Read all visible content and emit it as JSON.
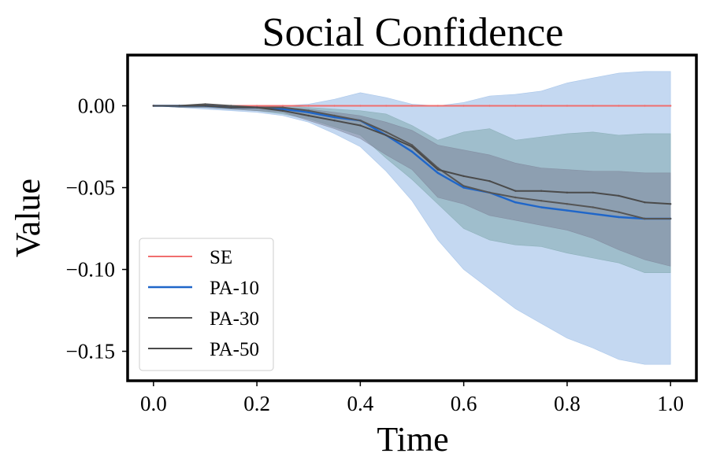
{
  "chart_data": {
    "type": "line",
    "title": "Social Confidence",
    "xlabel": "Time",
    "ylabel": "Value",
    "xlim": [
      -0.05,
      1.05
    ],
    "ylim": [
      -0.168,
      0.031
    ],
    "xticks": [
      0.0,
      0.2,
      0.4,
      0.6,
      0.8,
      1.0
    ],
    "xtick_labels": [
      "0.0",
      "0.2",
      "0.4",
      "0.6",
      "0.8",
      "1.0"
    ],
    "yticks": [
      0.0,
      -0.05,
      -0.1,
      -0.15
    ],
    "ytick_labels": [
      "0.00",
      "−0.05",
      "−0.10",
      "−0.15"
    ],
    "grid": false,
    "legend_position": "lower-left",
    "x": [
      0.0,
      0.05,
      0.1,
      0.15,
      0.2,
      0.25,
      0.3,
      0.35,
      0.4,
      0.45,
      0.5,
      0.55,
      0.6,
      0.65,
      0.7,
      0.75,
      0.8,
      0.85,
      0.9,
      0.95,
      1.0
    ],
    "series": [
      {
        "name": "SE",
        "color": "#f06e6e",
        "values": [
          0,
          0,
          0,
          0,
          0,
          0,
          0,
          0,
          0,
          0,
          0,
          0,
          0,
          0,
          0,
          0,
          0,
          0,
          0,
          0,
          0
        ]
      },
      {
        "name": "PA-10",
        "color": "#1f66c9",
        "values": [
          0,
          0,
          0,
          -0.001,
          -0.001,
          -0.002,
          -0.004,
          -0.007,
          -0.009,
          -0.018,
          -0.028,
          -0.041,
          -0.05,
          -0.053,
          -0.059,
          -0.062,
          -0.064,
          -0.066,
          -0.068,
          -0.069,
          -0.069
        ],
        "band_upper": [
          0,
          0,
          0,
          0,
          0,
          0,
          0.001,
          0.004,
          0.008,
          0.005,
          0.001,
          0,
          0.002,
          0.006,
          0.007,
          0.009,
          0.014,
          0.017,
          0.02,
          0.021,
          0.021
        ],
        "band_lower": [
          0,
          -0.001,
          -0.002,
          -0.003,
          -0.004,
          -0.006,
          -0.01,
          -0.017,
          -0.025,
          -0.04,
          -0.058,
          -0.082,
          -0.1,
          -0.112,
          -0.124,
          -0.133,
          -0.142,
          -0.148,
          -0.155,
          -0.158,
          -0.158
        ],
        "band_color": "#8ab2e3"
      },
      {
        "name": "PA-30",
        "color": "#555555",
        "values": [
          0,
          0,
          0.001,
          0,
          -0.001,
          -0.001,
          -0.003,
          -0.006,
          -0.009,
          -0.016,
          -0.024,
          -0.038,
          -0.049,
          -0.053,
          -0.056,
          -0.058,
          -0.06,
          -0.062,
          -0.065,
          -0.069,
          -0.069
        ],
        "band_upper": [
          0,
          0,
          0,
          0,
          0,
          0,
          -0.001,
          -0.002,
          -0.003,
          -0.005,
          -0.012,
          -0.021,
          -0.016,
          -0.014,
          -0.021,
          -0.019,
          -0.017,
          -0.016,
          -0.018,
          -0.017,
          -0.017
        ],
        "band_lower": [
          0,
          -0.001,
          -0.001,
          -0.002,
          -0.003,
          -0.005,
          -0.008,
          -0.013,
          -0.018,
          -0.032,
          -0.045,
          -0.06,
          -0.075,
          -0.082,
          -0.085,
          -0.086,
          -0.09,
          -0.093,
          -0.096,
          -0.102,
          -0.102
        ],
        "band_color": "#7aa3a7"
      },
      {
        "name": "PA-50",
        "color": "#4a4a4a",
        "values": [
          0,
          0,
          0,
          -0.001,
          -0.001,
          -0.003,
          -0.006,
          -0.009,
          -0.012,
          -0.018,
          -0.025,
          -0.039,
          -0.043,
          -0.046,
          -0.052,
          -0.052,
          -0.053,
          -0.053,
          -0.055,
          -0.059,
          -0.06
        ],
        "band_upper": [
          0,
          0,
          0,
          0,
          0,
          -0.001,
          -0.002,
          -0.004,
          -0.006,
          -0.01,
          -0.015,
          -0.024,
          -0.027,
          -0.03,
          -0.035,
          -0.038,
          -0.039,
          -0.04,
          -0.04,
          -0.041,
          -0.041
        ],
        "band_lower": [
          0,
          -0.001,
          -0.001,
          -0.002,
          -0.003,
          -0.004,
          -0.009,
          -0.014,
          -0.02,
          -0.03,
          -0.039,
          -0.056,
          -0.06,
          -0.067,
          -0.07,
          -0.073,
          -0.076,
          -0.081,
          -0.088,
          -0.094,
          -0.098
        ],
        "band_color": "#7b7f95"
      }
    ]
  }
}
